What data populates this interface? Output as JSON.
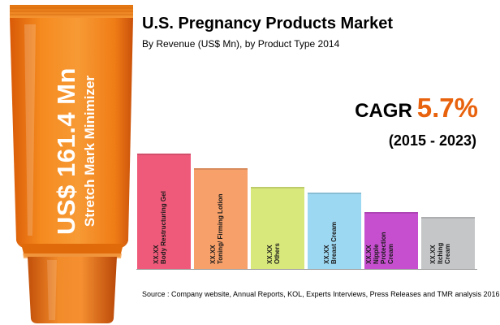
{
  "header": {
    "title": "U.S. Pregnancy Products Market",
    "subtitle": "By Revenue (US$ Mn), by Product Type 2014"
  },
  "tube": {
    "value_text": "US$ 161.4 Mn",
    "product_text": "Stretch Mark Minimizer",
    "color": "#f07d16"
  },
  "cagr": {
    "label": "CAGR",
    "value": "5.7%",
    "period": "(2015 - 2023)",
    "color": "#e8620d"
  },
  "chart_data": {
    "type": "bar",
    "title": "U.S. Pregnancy Products Market",
    "subtitle": "By Revenue (US$ Mn), by Product Type 2014",
    "xlabel": "",
    "ylabel": "",
    "categories": [
      "Body Restructuring Gel",
      "Toning/ Firming Lotion",
      "Others",
      "Breast Cream",
      "Nipple Protection Cream",
      "Itching Cream"
    ],
    "category_lines": [
      [
        "Body Restructuring Gel"
      ],
      [
        "Toning/ Firming Lotion"
      ],
      [
        "Others"
      ],
      [
        "Breast Cream"
      ],
      [
        "Nipple",
        "Protection",
        "Cream"
      ],
      [
        "Itching",
        "Cream"
      ]
    ],
    "value_labels": [
      "XX.XX",
      "XX.XX",
      "XX.XX",
      "XX.XX",
      "XX.XX",
      "XX.XX"
    ],
    "values": [
      100,
      87,
      71,
      66,
      49,
      45
    ],
    "colors": [
      "#ef5a7a",
      "#f7a06a",
      "#d9e87a",
      "#9dd8f2",
      "#c64fcf",
      "#c4c6c8"
    ],
    "value_scale": "relative bar heights (values not printed; labels read XX.XX)",
    "ylim": [
      0,
      100
    ],
    "grid": false,
    "legend": "none"
  },
  "footer": {
    "source": "Source : Company website, Annual Reports, KOL, Experts Interviews, Press Releases and TMR analysis 2016"
  }
}
